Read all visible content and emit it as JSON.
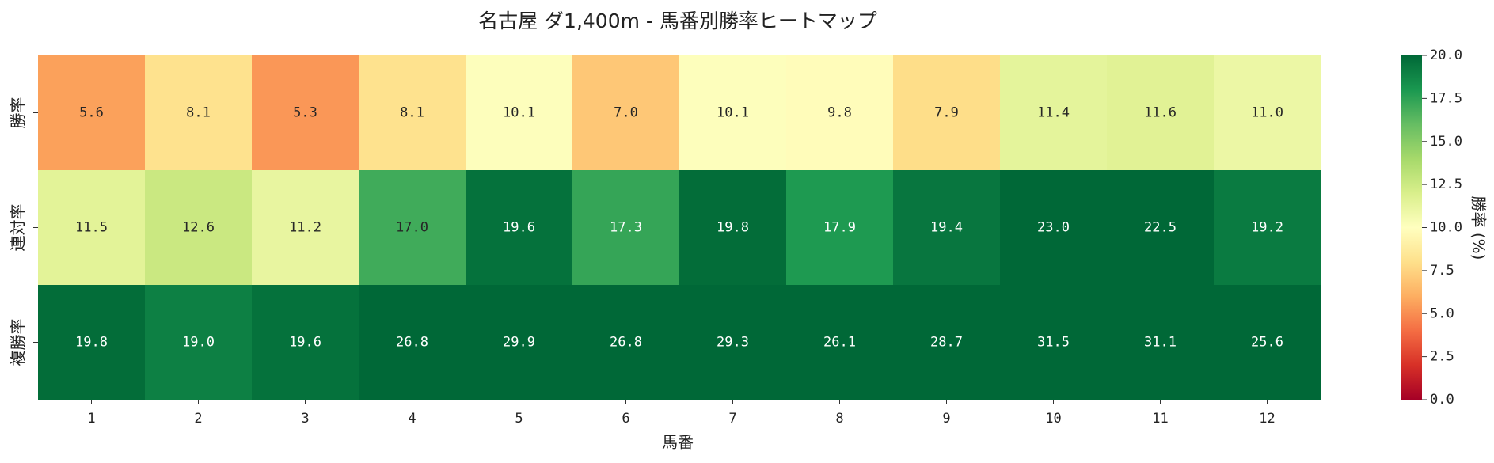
{
  "chart_data": {
    "type": "heatmap",
    "title": "名古屋 ダ1,400m - 馬番別勝率ヒートマップ",
    "x_label": "馬番",
    "categories": [
      "1",
      "2",
      "3",
      "4",
      "5",
      "6",
      "7",
      "8",
      "9",
      "10",
      "11",
      "12"
    ],
    "rows": [
      "勝率",
      "連対率",
      "複勝率"
    ],
    "values": [
      [
        5.6,
        8.1,
        5.3,
        8.1,
        10.1,
        7.0,
        10.1,
        9.8,
        7.9,
        11.4,
        11.6,
        11.0
      ],
      [
        11.5,
        12.6,
        11.2,
        17.0,
        19.6,
        17.3,
        19.8,
        17.9,
        19.4,
        23.0,
        22.5,
        19.2
      ],
      [
        19.8,
        19.0,
        19.6,
        26.8,
        29.9,
        26.8,
        29.3,
        26.1,
        28.7,
        31.5,
        31.1,
        25.6
      ]
    ],
    "value_labels": [
      [
        "5.6",
        "8.1",
        "5.3",
        "8.1",
        "10.1",
        "7.0",
        "10.1",
        "9.8",
        "7.9",
        "11.4",
        "11.6",
        "11.0"
      ],
      [
        "11.5",
        "12.6",
        "11.2",
        "17.0",
        "19.6",
        "17.3",
        "19.8",
        "17.9",
        "19.4",
        "23.0",
        "22.5",
        "19.2"
      ],
      [
        "19.8",
        "19.0",
        "19.6",
        "26.8",
        "29.9",
        "26.8",
        "29.3",
        "26.1",
        "28.7",
        "31.5",
        "31.1",
        "25.6"
      ]
    ],
    "colormap": "RdYlGn",
    "colorbar_label": "勝率 (%)",
    "clim": [
      0,
      20
    ],
    "cticks": [
      {
        "value": 0,
        "label": "0.0"
      },
      {
        "value": 2.5,
        "label": "2.5"
      },
      {
        "value": 5,
        "label": "5.0"
      },
      {
        "value": 7.5,
        "label": "7.5"
      },
      {
        "value": 10,
        "label": "10.0"
      },
      {
        "value": 12.5,
        "label": "12.5"
      },
      {
        "value": 15,
        "label": "15.0"
      },
      {
        "value": 17.5,
        "label": "17.5"
      },
      {
        "value": 20,
        "label": "20.0"
      }
    ]
  }
}
